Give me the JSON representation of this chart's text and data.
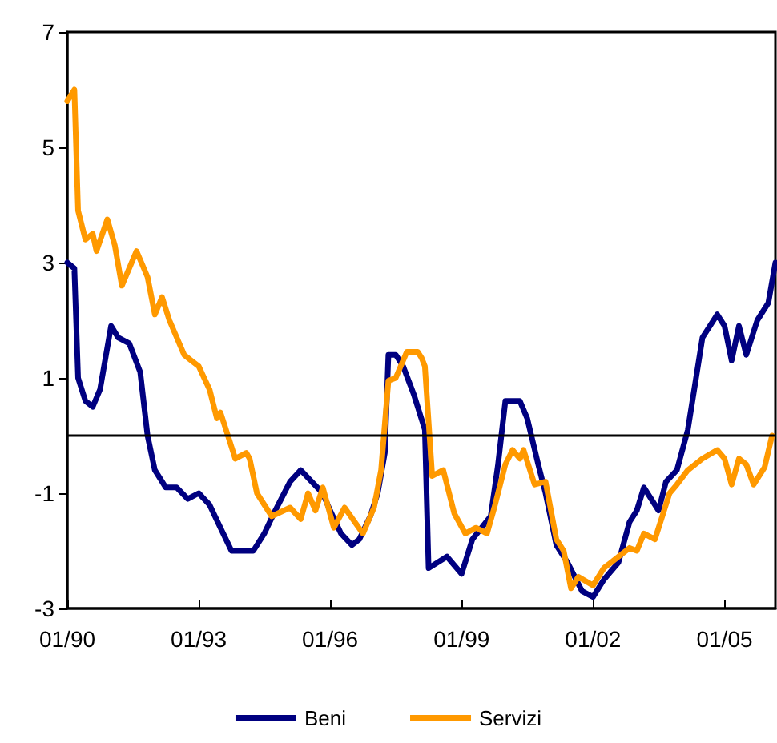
{
  "chart_data": {
    "type": "line",
    "xlim": [
      "1990-01",
      "2006-03"
    ],
    "xticks": [
      {
        "value": "1990-01",
        "label": "01/90"
      },
      {
        "value": "1993-01",
        "label": "01/93"
      },
      {
        "value": "1996-01",
        "label": "01/96"
      },
      {
        "value": "1999-01",
        "label": "01/99"
      },
      {
        "value": "2002-01",
        "label": "01/02"
      },
      {
        "value": "2005-01",
        "label": "01/05"
      }
    ],
    "ylim": [
      -3,
      7
    ],
    "yticks": [
      -3,
      -1,
      1,
      3,
      5,
      7
    ],
    "grid": false,
    "legend": "bottom",
    "marker": "none",
    "line_style": "solid",
    "ref_lines": [
      {
        "axis": "y",
        "value": 0,
        "color": "#000000"
      }
    ],
    "series": [
      {
        "name": "Beni",
        "color": "#000080",
        "x": [
          "1990-01",
          "1990-03",
          "1990-04",
          "1990-06",
          "1990-08",
          "1990-10",
          "1991-01",
          "1991-03",
          "1991-06",
          "1991-09",
          "1991-11",
          "1992-01",
          "1992-04",
          "1992-07",
          "1992-10",
          "1993-01",
          "1993-04",
          "1993-07",
          "1993-10",
          "1994-01",
          "1994-04",
          "1994-07",
          "1994-10",
          "1995-02",
          "1995-05",
          "1995-08",
          "1995-11",
          "1996-01",
          "1996-04",
          "1996-07",
          "1996-09",
          "1996-12",
          "1997-02",
          "1997-04",
          "1997-05",
          "1997-07",
          "1997-09",
          "1997-12",
          "1998-03",
          "1998-04",
          "1998-09",
          "1999-01",
          "1999-04",
          "1999-09",
          "1999-11",
          "2000-01",
          "2000-05",
          "2000-07",
          "2000-10",
          "2000-12",
          "2001-03",
          "2001-06",
          "2001-10",
          "2002-01",
          "2002-04",
          "2002-08",
          "2002-11",
          "2003-01",
          "2003-03",
          "2003-07",
          "2003-09",
          "2003-12",
          "2004-03",
          "2004-07",
          "2004-11",
          "2005-01",
          "2005-03",
          "2005-05",
          "2005-07",
          "2005-10",
          "2006-01",
          "2006-03"
        ],
        "values": [
          3.0,
          2.9,
          1.0,
          0.6,
          0.5,
          0.8,
          1.9,
          1.7,
          1.6,
          1.1,
          0.0,
          -0.6,
          -0.9,
          -0.9,
          -1.1,
          -1.0,
          -1.2,
          -1.6,
          -2.0,
          -2.0,
          -2.0,
          -1.7,
          -1.3,
          -0.8,
          -0.6,
          -0.8,
          -1.0,
          -1.3,
          -1.7,
          -1.9,
          -1.8,
          -1.4,
          -1.0,
          -0.3,
          1.4,
          1.4,
          1.2,
          0.7,
          0.1,
          -2.3,
          -2.1,
          -2.4,
          -1.8,
          -1.4,
          -0.5,
          0.6,
          0.6,
          0.3,
          -0.5,
          -1.0,
          -1.9,
          -2.2,
          -2.7,
          -2.8,
          -2.5,
          -2.2,
          -1.5,
          -1.3,
          -0.9,
          -1.3,
          -0.8,
          -0.6,
          0.1,
          1.7,
          2.1,
          1.9,
          1.3,
          1.9,
          1.4,
          2.0,
          2.3,
          3.0
        ]
      },
      {
        "name": "Servizi",
        "color": "#ff9900",
        "x": [
          "1990-01",
          "1990-03",
          "1990-04",
          "1990-06",
          "1990-08",
          "1990-09",
          "1990-12",
          "1991-02",
          "1991-04",
          "1991-08",
          "1991-11",
          "1992-01",
          "1992-03",
          "1992-05",
          "1992-09",
          "1992-11",
          "1993-01",
          "1993-04",
          "1993-06",
          "1993-07",
          "1993-09",
          "1993-11",
          "1994-02",
          "1994-03",
          "1994-05",
          "1994-09",
          "1995-02",
          "1995-05",
          "1995-07",
          "1995-09",
          "1995-11",
          "1996-02",
          "1996-05",
          "1996-10",
          "1997-01",
          "1997-03",
          "1997-04",
          "1997-05",
          "1997-07",
          "1997-10",
          "1998-01",
          "1998-02",
          "1998-03",
          "1998-05",
          "1998-08",
          "1998-11",
          "1999-02",
          "1999-05",
          "1999-08",
          "1999-10",
          "2000-01",
          "2000-03",
          "2000-05",
          "2000-06",
          "2000-09",
          "2000-12",
          "2001-03",
          "2001-05",
          "2001-07",
          "2001-09",
          "2002-01",
          "2002-04",
          "2002-08",
          "2002-11",
          "2003-01",
          "2003-03",
          "2003-06",
          "2003-10",
          "2003-12",
          "2004-03",
          "2004-07",
          "2004-11",
          "2005-01",
          "2005-03",
          "2005-05",
          "2005-07",
          "2005-09",
          "2005-12",
          "2006-02"
        ],
        "values": [
          5.8,
          6.0,
          3.9,
          3.4,
          3.5,
          3.2,
          3.75,
          3.3,
          2.6,
          3.2,
          2.75,
          2.1,
          2.4,
          2.0,
          1.4,
          1.3,
          1.2,
          0.8,
          0.3,
          0.4,
          0.0,
          -0.4,
          -0.3,
          -0.4,
          -1.0,
          -1.4,
          -1.25,
          -1.45,
          -1.0,
          -1.3,
          -0.9,
          -1.6,
          -1.25,
          -1.7,
          -1.25,
          -0.6,
          0.2,
          0.95,
          1.0,
          1.45,
          1.45,
          1.35,
          1.2,
          -0.7,
          -0.6,
          -1.35,
          -1.7,
          -1.6,
          -1.7,
          -1.25,
          -0.5,
          -0.25,
          -0.4,
          -0.25,
          -0.85,
          -0.8,
          -1.8,
          -2.0,
          -2.65,
          -2.45,
          -2.6,
          -2.3,
          -2.1,
          -1.95,
          -2.0,
          -1.7,
          -1.8,
          -1.0,
          -0.85,
          -0.6,
          -0.4,
          -0.25,
          -0.4,
          -0.85,
          -0.4,
          -0.5,
          -0.85,
          -0.55,
          0.0
        ]
      }
    ]
  }
}
